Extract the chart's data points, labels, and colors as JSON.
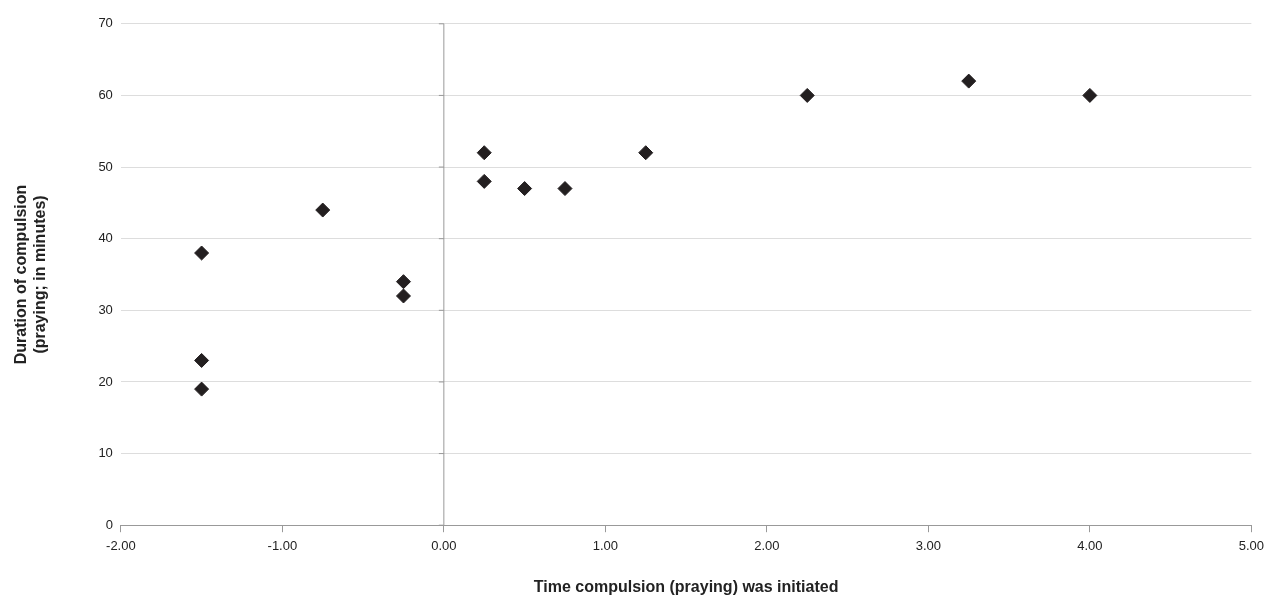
{
  "chart_data": {
    "type": "scatter",
    "xlabel": "Time compulsion (praying) was initiated",
    "ylabel": "Duration of compulsion\n(praying; in minutes)",
    "x": [
      -1.5,
      -1.5,
      -1.5,
      -0.75,
      -0.25,
      -0.25,
      0.25,
      0.25,
      0.5,
      0.75,
      1.25,
      2.25,
      3.25,
      4.0
    ],
    "values": [
      38,
      23,
      19,
      44,
      34,
      32,
      52,
      48,
      47,
      47,
      52,
      60,
      62,
      60
    ],
    "color": "#231f20",
    "marker": "diamond",
    "grid": "y",
    "legend": false,
    "xlim": [
      -2,
      5
    ],
    "xticks": [
      {
        "value": -2,
        "label": "-2.00"
      },
      {
        "value": -1,
        "label": "-1.00"
      },
      {
        "value": 0,
        "label": "0.00"
      },
      {
        "value": 1,
        "label": "1.00"
      },
      {
        "value": 2,
        "label": "2.00"
      },
      {
        "value": 3,
        "label": "3.00"
      },
      {
        "value": 4,
        "label": "4.00"
      },
      {
        "value": 5,
        "label": "5.00"
      }
    ],
    "ylim": [
      0,
      70
    ],
    "yticks": [
      0,
      10,
      20,
      30,
      40,
      50,
      60,
      70
    ]
  }
}
